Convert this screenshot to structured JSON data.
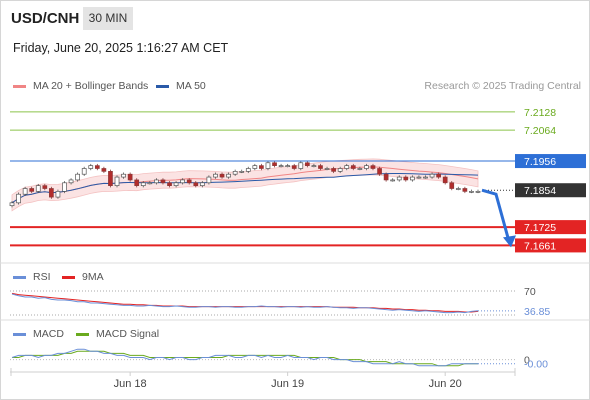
{
  "header": {
    "symbol": "USD/CNH",
    "timeframe": "30 MIN",
    "timestamp": "Friday, June 20, 2025 1:16:27 AM CET"
  },
  "legend_main": [
    {
      "label": "MA 20 + Bollinger Bands",
      "color": "#f08585"
    },
    {
      "label": "MA 50",
      "color": "#2a5aa8"
    }
  ],
  "credit": "Research © 2025 Trading Central",
  "colors": {
    "resistance": "#8bc34a",
    "pivot": "#2d6fd6",
    "support": "#e32424",
    "current": "#333333",
    "arrow": "#2d6fd6"
  },
  "chart_data": [
    {
      "type": "candlestick",
      "name": "price",
      "y_range": [
        7.161,
        7.218
      ],
      "levels": [
        {
          "label": "7.2128",
          "value": 7.2128,
          "kind": "resistance"
        },
        {
          "label": "7.2064",
          "value": 7.2064,
          "kind": "resistance"
        },
        {
          "label": "7.1956",
          "value": 7.1956,
          "kind": "pivot"
        },
        {
          "label": "7.1854",
          "value": 7.1854,
          "kind": "current"
        },
        {
          "label": "7.1725",
          "value": 7.1725,
          "kind": "support"
        },
        {
          "label": "7.1661",
          "value": 7.1661,
          "kind": "support"
        }
      ],
      "close": [
        7.181,
        7.184,
        7.186,
        7.185,
        7.187,
        7.186,
        7.183,
        7.185,
        7.188,
        7.189,
        7.191,
        7.193,
        7.194,
        7.193,
        7.192,
        7.187,
        7.19,
        7.191,
        7.189,
        7.187,
        7.188,
        7.188,
        7.189,
        7.188,
        7.187,
        7.188,
        7.189,
        7.188,
        7.187,
        7.188,
        7.19,
        7.191,
        7.19,
        7.191,
        7.192,
        7.192,
        7.193,
        7.194,
        7.193,
        7.195,
        7.194,
        7.194,
        7.194,
        7.193,
        7.195,
        7.194,
        7.194,
        7.193,
        7.193,
        7.192,
        7.193,
        7.194,
        7.193,
        7.193,
        7.194,
        7.193,
        7.191,
        7.189,
        7.189,
        7.19,
        7.189,
        7.19,
        7.19,
        7.19,
        7.191,
        7.19,
        7.188,
        7.186,
        7.186,
        7.185,
        7.185,
        7.185
      ],
      "annotation": {
        "type": "arrow",
        "direction": "down",
        "target": 7.1661
      }
    },
    {
      "type": "line",
      "name": "RSI",
      "legend": [
        "RSI",
        "9MA"
      ],
      "levels": [
        {
          "label": "70",
          "value": 70
        }
      ],
      "current": {
        "label": "36.85",
        "value": 36.85
      },
      "y_range": [
        25,
        75
      ],
      "rsi": [
        65,
        62,
        60,
        60,
        58,
        59,
        56,
        55,
        55,
        54,
        52,
        52,
        50,
        50,
        49,
        48,
        47,
        46,
        46,
        45,
        45,
        46,
        45,
        44,
        44,
        45,
        44,
        43,
        43,
        44,
        44,
        43,
        44,
        44,
        43,
        43,
        44,
        44,
        45,
        44,
        44,
        43,
        44,
        44,
        43,
        44,
        43,
        43,
        44,
        43,
        42,
        42,
        41,
        42,
        42,
        41,
        40,
        39,
        38,
        39,
        38,
        37,
        36,
        37,
        36,
        35,
        34,
        34,
        35,
        34,
        36,
        37
      ],
      "ma9": [
        66,
        64,
        63,
        62,
        61,
        60,
        59,
        58,
        57,
        56,
        55,
        54,
        53,
        52,
        51,
        50,
        49,
        48,
        48,
        47,
        47,
        46,
        46,
        45,
        45,
        45,
        45,
        44,
        44,
        44,
        44,
        44,
        44,
        44,
        44,
        44,
        44,
        44,
        44,
        44,
        44,
        44,
        44,
        44,
        44,
        44,
        44,
        44,
        44,
        43,
        43,
        43,
        43,
        42,
        42,
        42,
        41,
        41,
        40,
        40,
        39,
        39,
        38,
        38,
        37,
        37,
        36,
        36,
        36,
        35,
        35,
        36
      ]
    },
    {
      "type": "line",
      "name": "MACD",
      "legend": [
        "MACD",
        "MACD Signal"
      ],
      "levels": [
        {
          "label": "0",
          "value": 0
        }
      ],
      "current": {
        "label": "-0.00",
        "value": -0.002
      },
      "y_range": [
        -0.006,
        0.008
      ],
      "macd": [
        0.001,
        0.002,
        0.002,
        0.002,
        0.001,
        0.002,
        0.002,
        0.003,
        0.003,
        0.004,
        0.005,
        0.005,
        0.004,
        0.004,
        0.003,
        0.003,
        0.002,
        0.002,
        0.001,
        0.001,
        0.001,
        0.0,
        0.001,
        0.001,
        0.0,
        0.001,
        0.001,
        0.0,
        0.0,
        0.001,
        0.001,
        0.002,
        0.002,
        0.002,
        0.001,
        0.001,
        0.002,
        0.002,
        0.001,
        0.002,
        0.001,
        0.001,
        0.002,
        0.001,
        0.001,
        0.001,
        0.0,
        0.001,
        0.001,
        0.0,
        0.0,
        0.0,
        -0.001,
        -0.001,
        -0.001,
        -0.002,
        -0.002,
        -0.002,
        -0.002,
        -0.001,
        -0.002,
        -0.002,
        -0.003,
        -0.003,
        -0.003,
        -0.003,
        -0.003,
        -0.002,
        -0.002,
        -0.002,
        -0.002,
        -0.002
      ],
      "signal": [
        0.001,
        0.001,
        0.002,
        0.002,
        0.002,
        0.002,
        0.002,
        0.002,
        0.003,
        0.003,
        0.004,
        0.004,
        0.004,
        0.004,
        0.004,
        0.003,
        0.003,
        0.003,
        0.002,
        0.002,
        0.002,
        0.001,
        0.001,
        0.001,
        0.001,
        0.001,
        0.001,
        0.001,
        0.001,
        0.001,
        0.001,
        0.001,
        0.001,
        0.002,
        0.002,
        0.002,
        0.002,
        0.002,
        0.002,
        0.002,
        0.002,
        0.002,
        0.002,
        0.002,
        0.001,
        0.001,
        0.001,
        0.001,
        0.001,
        0.001,
        0.0,
        0.0,
        0.0,
        0.0,
        -0.001,
        -0.001,
        -0.001,
        -0.001,
        -0.002,
        -0.002,
        -0.002,
        -0.002,
        -0.002,
        -0.002,
        -0.002,
        -0.003,
        -0.003,
        -0.003,
        -0.003,
        -0.002,
        -0.002,
        -0.002
      ]
    }
  ],
  "x_axis": {
    "ticks": [
      {
        "label": "Jun 18",
        "index": 18
      },
      {
        "label": "Jun 19",
        "index": 42
      },
      {
        "label": "Jun 20",
        "index": 66
      }
    ]
  },
  "legend_rsi": [
    {
      "label": "RSI",
      "color": "#6a8fd8"
    },
    {
      "label": "9MA",
      "color": "#e32424"
    }
  ],
  "legend_macd": [
    {
      "label": "MACD",
      "color": "#6a8fd8"
    },
    {
      "label": "MACD Signal",
      "color": "#6aaa1e"
    }
  ]
}
